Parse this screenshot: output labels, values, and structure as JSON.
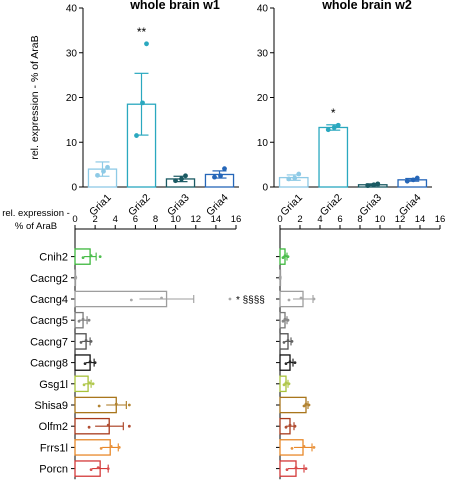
{
  "chart_data": [
    {
      "type": "bar",
      "title": "whole brain w1",
      "ylabel": "rel. expression - % of AraB",
      "ylim": [
        0,
        40
      ],
      "yticks": [
        0,
        10,
        20,
        30,
        40
      ],
      "categories": [
        "Gria1",
        "Gria2",
        "Gria3",
        "Gria4"
      ],
      "values": [
        4.0,
        18.5,
        1.8,
        2.8
      ],
      "errors": [
        1.6,
        6.9,
        0.6,
        0.8
      ],
      "points": [
        [
          2.6,
          3.5,
          4.4
        ],
        [
          11.5,
          18.8,
          32.0
        ],
        [
          1.4,
          1.8,
          2.5
        ],
        [
          2.2,
          2.5,
          4.1
        ]
      ],
      "significance": [
        "",
        "**",
        "",
        ""
      ],
      "colors": [
        "#8ecae6",
        "#2aa8bf",
        "#1a5a63",
        "#2566b8"
      ]
    },
    {
      "type": "bar",
      "title": "whole brain w2",
      "ylim": [
        0,
        40
      ],
      "yticks": [
        0,
        10,
        20,
        30,
        40
      ],
      "categories": [
        "Gria1",
        "Gria2",
        "Gria3",
        "Gria4"
      ],
      "values": [
        2.1,
        13.3,
        0.5,
        1.6
      ],
      "errors": [
        0.6,
        0.6,
        0.2,
        0.3
      ],
      "points": [
        [
          1.8,
          2.0,
          2.9
        ],
        [
          12.8,
          13.3,
          13.8
        ],
        [
          0.3,
          0.5,
          0.7
        ],
        [
          1.3,
          1.6,
          2.0
        ]
      ],
      "significance": [
        "",
        "*",
        "",
        ""
      ],
      "colors": [
        "#8ecae6",
        "#2aa8bf",
        "#1a5a63",
        "#2566b8"
      ]
    },
    {
      "type": "bar",
      "orientation": "horizontal",
      "xlabel": [
        "rel. expression -",
        "% of AraB"
      ],
      "xlim": [
        0,
        16
      ],
      "xticks": [
        0,
        2,
        4,
        6,
        8,
        10,
        12,
        14,
        16
      ],
      "categories": [
        "Cnih2",
        "Cacng2",
        "Cacng4",
        "Cacng5",
        "Cacng7",
        "Cacng8",
        "Gsg1l",
        "Shisa9",
        "Olfm2",
        "Frrs1l",
        "Porcn"
      ],
      "values": [
        1.5,
        0.05,
        9.1,
        0.8,
        1.1,
        1.5,
        1.3,
        4.1,
        3.4,
        3.5,
        2.5
      ],
      "errors": [
        0.6,
        0.0,
        2.7,
        0.4,
        0.4,
        0.4,
        0.3,
        1.0,
        1.4,
        0.8,
        0.8
      ],
      "points": [
        [
          0.8,
          1.6,
          2.5
        ],
        [
          0.02,
          0.05,
          0.08
        ],
        [
          5.6,
          8.6,
          15.4
        ],
        [
          0.4,
          0.8,
          1.4
        ],
        [
          0.6,
          1.1,
          1.6
        ],
        [
          1.0,
          1.5,
          2.0
        ],
        [
          0.9,
          1.4,
          1.8
        ],
        [
          2.4,
          4.1,
          5.4
        ],
        [
          1.4,
          3.3,
          5.4
        ],
        [
          2.6,
          3.6,
          4.4
        ],
        [
          1.6,
          2.3,
          3.3
        ]
      ],
      "significance": [
        "",
        "",
        "* §§§§",
        "",
        "",
        "",
        "",
        "",
        "",
        "",
        ""
      ],
      "colors": [
        "#3db83d",
        "#999999",
        "#9e9e9e",
        "#7a7a7a",
        "#505050",
        "#111111",
        "#a8c23a",
        "#a9761c",
        "#a83a1c",
        "#e8882a",
        "#d43a3a"
      ]
    },
    {
      "type": "bar",
      "orientation": "horizontal",
      "xlim": [
        0,
        16
      ],
      "xticks": [
        0,
        2,
        4,
        6,
        8,
        10,
        12,
        14,
        16
      ],
      "categories": [
        "Cnih2",
        "Cacng2",
        "Cacng4",
        "Cacng5",
        "Cacng7",
        "Cacng8",
        "Gsg1l",
        "Shisa9",
        "Olfm2",
        "Frrs1l",
        "Porcn"
      ],
      "values": [
        0.5,
        0.02,
        2.3,
        0.5,
        0.8,
        1.0,
        0.6,
        2.6,
        1.0,
        2.3,
        1.6
      ],
      "errors": [
        0.2,
        0.0,
        1.0,
        0.2,
        0.3,
        0.3,
        0.2,
        0.2,
        0.4,
        0.9,
        0.8
      ],
      "points": [
        [
          0.3,
          0.5,
          0.8
        ],
        [
          0.01,
          0.02,
          0.03
        ],
        [
          0.9,
          2.1,
          3.4
        ],
        [
          0.3,
          0.5,
          0.8
        ],
        [
          0.4,
          0.8,
          1.2
        ],
        [
          0.6,
          1.0,
          1.5
        ],
        [
          0.4,
          0.6,
          0.9
        ],
        [
          2.4,
          2.6,
          2.9
        ],
        [
          0.6,
          1.0,
          1.5
        ],
        [
          1.2,
          2.4,
          3.4
        ],
        [
          0.7,
          1.6,
          2.6
        ]
      ],
      "significance": [
        "",
        "",
        "",
        "",
        "",
        "",
        "",
        "",
        "",
        "",
        ""
      ],
      "colors": [
        "#3db83d",
        "#999999",
        "#9e9e9e",
        "#7a7a7a",
        "#505050",
        "#111111",
        "#a8c23a",
        "#a9761c",
        "#a83a1c",
        "#e8882a",
        "#d43a3a"
      ]
    }
  ]
}
